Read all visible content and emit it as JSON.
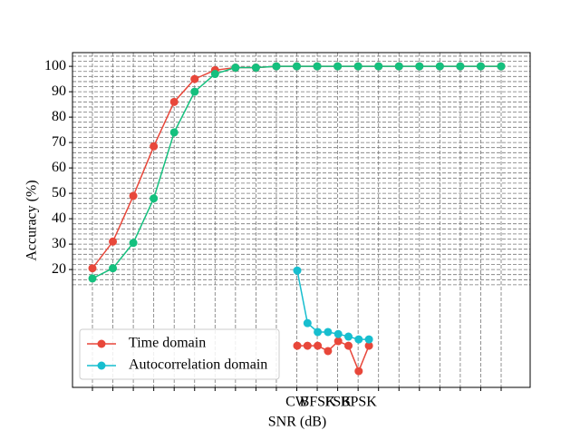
{
  "chart_data": [
    {
      "type": "line",
      "xlabel": "SNR (dB)",
      "ylabel": "Accuracy (%)",
      "categories": [
        null,
        null,
        null,
        null,
        null,
        null,
        null,
        null,
        null,
        null,
        null,
        null,
        null,
        null,
        null,
        null,
        null,
        null,
        null,
        null,
        null
      ],
      "series": [
        {
          "color": "#e8473a",
          "values": [
            20.5,
            31,
            49,
            68.5,
            86,
            95,
            98.5,
            99.5,
            99.5,
            100,
            100,
            100,
            100,
            100,
            100,
            100,
            100,
            100,
            100,
            100,
            100
          ]
        },
        {
          "color": "#14c07e",
          "values": [
            16.5,
            20.5,
            30.5,
            48,
            74,
            90,
            97,
            99.5,
            99.5,
            100,
            100,
            100,
            100,
            100,
            100,
            100,
            100,
            100,
            100,
            100,
            100
          ]
        }
      ],
      "ylim": [
        -26.4,
        105.4
      ],
      "yticks": [
        20,
        30,
        40,
        50,
        60,
        70,
        80,
        90,
        100
      ],
      "yminorticks": [
        14,
        16,
        18,
        22,
        24,
        26,
        28,
        32,
        34,
        36,
        38,
        42,
        44,
        46,
        48,
        52,
        54,
        56,
        58,
        62,
        64,
        66,
        68,
        72,
        74,
        76,
        78,
        82,
        84,
        86,
        88,
        92,
        94,
        96,
        98,
        102,
        104
      ],
      "grid": true
    },
    {
      "type": "line",
      "categories": [
        "CW",
        null,
        "BFSK",
        null,
        "FSK",
        null,
        "BPSK",
        null
      ],
      "series": [
        {
          "name": "Time domain",
          "color": "#e8473a",
          "values": [
            -10,
            -10,
            -10,
            -12.1,
            -8.2,
            -10,
            -20,
            -10
          ]
        },
        {
          "name": "Autocorrelation domain",
          "color": "#17becf",
          "values": [
            19.6,
            -1.1,
            -4.6,
            -4.6,
            -5.4,
            -6.4,
            -7.5,
            -7.5
          ]
        }
      ],
      "ylim": [
        -26.4,
        105.4
      ],
      "legend": "lower left"
    }
  ]
}
